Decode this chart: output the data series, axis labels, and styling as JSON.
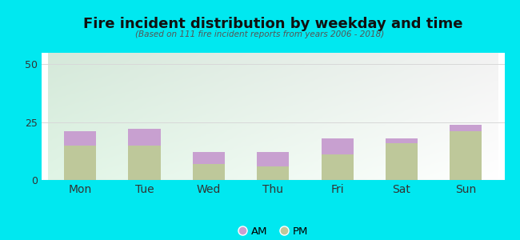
{
  "categories": [
    "Mon",
    "Tue",
    "Wed",
    "Thu",
    "Fri",
    "Sat",
    "Sun"
  ],
  "pm_values": [
    15,
    15,
    7,
    6,
    11,
    16,
    21
  ],
  "am_values": [
    6,
    7,
    5,
    6,
    7,
    2,
    3
  ],
  "am_color": "#c8a0d0",
  "pm_color": "#bec89a",
  "title": "Fire incident distribution by weekday and time",
  "subtitle": "(Based on 111 fire incident reports from years 2006 - 2018)",
  "ylim": [
    0,
    55
  ],
  "yticks": [
    0,
    25,
    50
  ],
  "background_outer": "#00e8f0",
  "grid_color": "#d8d8d8",
  "bar_width": 0.5
}
